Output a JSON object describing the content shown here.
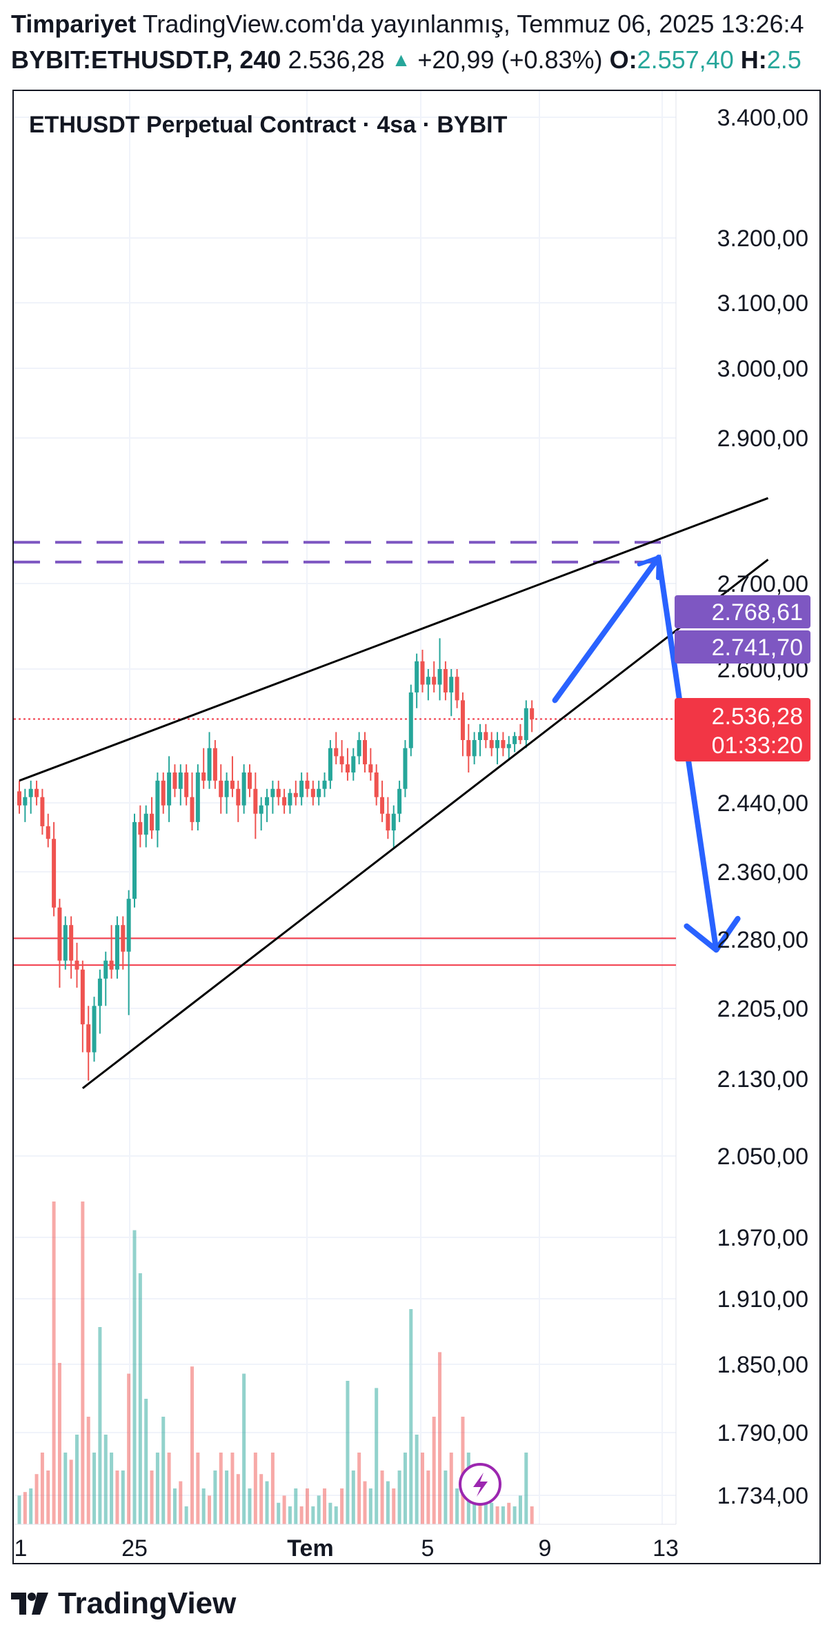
{
  "header": {
    "author": "Timpariyet",
    "published": "TradingView.com'da yayınlanmış, Temmuz 06, 2025 13:26:4",
    "symbol": "BYBIT:ETHUSDT.P, 240",
    "last": "2.536,28",
    "change": "+20,99 (+0.83%)",
    "open_label": "O:",
    "open_value": "2.557,40",
    "high_label": "H:",
    "high_value": "2.5"
  },
  "chart_title": "ETHUSDT Perpetual Contract · 4sa · BYBIT",
  "footer": {
    "brand": "TradingView"
  },
  "colors": {
    "up": "#26a69a",
    "down": "#ef5350",
    "purple": "#7e57c2",
    "blue": "#2962ff",
    "red_line": "#f23645",
    "trend": "#000000"
  },
  "chart_data": {
    "type": "candlestick",
    "y_axis_ticks": [
      "3.400,00",
      "3.200,00",
      "3.100,00",
      "3.000,00",
      "2.900,00",
      "2.700,00",
      "2.600,00",
      "2.440,00",
      "2.360,00",
      "2.280,00",
      "2.205,00",
      "2.130,00",
      "2.050,00",
      "1.970,00",
      "1.910,00",
      "1.850,00",
      "1.790,00",
      "1.734,00"
    ],
    "y_scale": "log",
    "x_axis_ticks": [
      "1",
      "25",
      "Tem",
      "5",
      "9",
      "13"
    ],
    "x_axis_bold": "Tem",
    "price_tags": [
      {
        "label": "2.768,61",
        "color": "#7e57c2"
      },
      {
        "label": "2.741,70",
        "color": "#7e57c2"
      }
    ],
    "last_price_tag": {
      "price": "2.536,28",
      "countdown": "01:33:20",
      "color": "#f23645"
    },
    "horizontal_levels": [
      {
        "price": 2768.61,
        "style": "dashed",
        "color": "#7e57c2"
      },
      {
        "price": 2741.7,
        "style": "dashed",
        "color": "#7e57c2"
      },
      {
        "price": 2536.28,
        "style": "dotted",
        "color": "#f23645"
      },
      {
        "price": 2275,
        "style": "solid",
        "color": "#f23645"
      },
      {
        "price": 2245,
        "style": "solid",
        "color": "#f23645"
      }
    ],
    "trendlines": [
      {
        "name": "upper-wedge",
        "from": {
          "bar": 0,
          "price": 2460
        },
        "to": {
          "bar": 130,
          "price": 2830
        }
      },
      {
        "name": "lower-wedge",
        "from": {
          "bar": 11,
          "price": 2112
        },
        "to": {
          "bar": 130,
          "price": 2745
        }
      }
    ],
    "projection": [
      {
        "bar": 93,
        "price": 2560
      },
      {
        "bar": 111,
        "price": 2748
      },
      {
        "bar": 121,
        "price": 2262
      }
    ],
    "candles": [
      [
        2447,
        2460,
        2420,
        2430
      ],
      [
        2430,
        2450,
        2410,
        2440
      ],
      [
        2440,
        2460,
        2420,
        2450
      ],
      [
        2450,
        2460,
        2430,
        2440
      ],
      [
        2440,
        2450,
        2395,
        2405
      ],
      [
        2405,
        2420,
        2380,
        2390
      ],
      [
        2390,
        2410,
        2300,
        2310
      ],
      [
        2310,
        2320,
        2220,
        2250
      ],
      [
        2250,
        2300,
        2240,
        2290
      ],
      [
        2290,
        2300,
        2230,
        2250
      ],
      [
        2250,
        2270,
        2220,
        2240
      ],
      [
        2240,
        2250,
        2150,
        2180
      ],
      [
        2180,
        2200,
        2120,
        2150
      ],
      [
        2150,
        2210,
        2140,
        2200
      ],
      [
        2200,
        2240,
        2170,
        2230
      ],
      [
        2230,
        2260,
        2200,
        2250
      ],
      [
        2250,
        2290,
        2230,
        2240
      ],
      [
        2240,
        2300,
        2230,
        2290
      ],
      [
        2290,
        2300,
        2240,
        2260
      ],
      [
        2260,
        2330,
        2190,
        2320
      ],
      [
        2320,
        2420,
        2310,
        2410
      ],
      [
        2410,
        2430,
        2380,
        2395
      ],
      [
        2395,
        2430,
        2380,
        2420
      ],
      [
        2420,
        2440,
        2390,
        2400
      ],
      [
        2400,
        2470,
        2380,
        2460
      ],
      [
        2460,
        2470,
        2420,
        2430
      ],
      [
        2430,
        2490,
        2410,
        2470
      ],
      [
        2470,
        2480,
        2440,
        2450
      ],
      [
        2450,
        2480,
        2430,
        2470
      ],
      [
        2470,
        2480,
        2430,
        2440
      ],
      [
        2440,
        2470,
        2400,
        2410
      ],
      [
        2410,
        2480,
        2400,
        2470
      ],
      [
        2470,
        2500,
        2450,
        2460
      ],
      [
        2460,
        2520,
        2450,
        2500
      ],
      [
        2500,
        2510,
        2450,
        2460
      ],
      [
        2460,
        2480,
        2420,
        2440
      ],
      [
        2440,
        2470,
        2420,
        2460
      ],
      [
        2460,
        2490,
        2440,
        2450
      ],
      [
        2450,
        2460,
        2410,
        2430
      ],
      [
        2430,
        2480,
        2420,
        2470
      ],
      [
        2470,
        2480,
        2440,
        2450
      ],
      [
        2450,
        2470,
        2390,
        2420
      ],
      [
        2420,
        2440,
        2400,
        2430
      ],
      [
        2430,
        2450,
        2410,
        2440
      ],
      [
        2440,
        2460,
        2420,
        2450
      ],
      [
        2450,
        2460,
        2430,
        2440
      ],
      [
        2440,
        2450,
        2420,
        2430
      ],
      [
        2430,
        2450,
        2420,
        2445
      ],
      [
        2445,
        2460,
        2430,
        2440
      ],
      [
        2440,
        2470,
        2430,
        2460
      ],
      [
        2460,
        2470,
        2440,
        2450
      ],
      [
        2450,
        2460,
        2430,
        2440
      ],
      [
        2440,
        2460,
        2430,
        2450
      ],
      [
        2450,
        2470,
        2440,
        2460
      ],
      [
        2460,
        2510,
        2450,
        2500
      ],
      [
        2500,
        2520,
        2480,
        2490
      ],
      [
        2490,
        2510,
        2470,
        2480
      ],
      [
        2480,
        2500,
        2460,
        2470
      ],
      [
        2470,
        2500,
        2460,
        2490
      ],
      [
        2490,
        2520,
        2480,
        2510
      ],
      [
        2510,
        2520,
        2470,
        2480
      ],
      [
        2480,
        2500,
        2460,
        2470
      ],
      [
        2470,
        2480,
        2430,
        2440
      ],
      [
        2440,
        2460,
        2410,
        2420
      ],
      [
        2420,
        2440,
        2390,
        2400
      ],
      [
        2400,
        2430,
        2380,
        2420
      ],
      [
        2420,
        2460,
        2410,
        2450
      ],
      [
        2450,
        2510,
        2440,
        2500
      ],
      [
        2500,
        2580,
        2490,
        2570
      ],
      [
        2570,
        2620,
        2550,
        2610
      ],
      [
        2610,
        2625,
        2570,
        2580
      ],
      [
        2580,
        2600,
        2560,
        2590
      ],
      [
        2590,
        2610,
        2570,
        2580
      ],
      [
        2580,
        2640,
        2560,
        2600
      ],
      [
        2600,
        2610,
        2560,
        2570
      ],
      [
        2570,
        2600,
        2540,
        2590
      ],
      [
        2590,
        2600,
        2550,
        2560
      ],
      [
        2560,
        2570,
        2490,
        2510
      ],
      [
        2510,
        2530,
        2470,
        2490
      ],
      [
        2490,
        2520,
        2480,
        2510
      ],
      [
        2510,
        2530,
        2490,
        2520
      ],
      [
        2520,
        2530,
        2500,
        2510
      ],
      [
        2510,
        2520,
        2490,
        2500
      ],
      [
        2500,
        2520,
        2480,
        2510
      ],
      [
        2510,
        2520,
        2490,
        2500
      ],
      [
        2500,
        2515,
        2485,
        2505
      ],
      [
        2505,
        2520,
        2495,
        2515
      ],
      [
        2515,
        2530,
        2505,
        2510
      ],
      [
        2510,
        2560,
        2500,
        2550
      ],
      [
        2550,
        2560,
        2520,
        2536
      ]
    ],
    "volume_scale_note": "volume bars bottom pane, relative heights 0..1",
    "volumes": [
      [
        0.08,
        "up"
      ],
      [
        0.09,
        "down"
      ],
      [
        0.1,
        "up"
      ],
      [
        0.14,
        "down"
      ],
      [
        0.2,
        "down"
      ],
      [
        0.15,
        "down"
      ],
      [
        0.9,
        "down"
      ],
      [
        0.45,
        "down"
      ],
      [
        0.2,
        "up"
      ],
      [
        0.18,
        "down"
      ],
      [
        0.25,
        "up"
      ],
      [
        0.9,
        "down"
      ],
      [
        0.3,
        "down"
      ],
      [
        0.2,
        "up"
      ],
      [
        0.55,
        "up"
      ],
      [
        0.25,
        "up"
      ],
      [
        0.2,
        "up"
      ],
      [
        0.15,
        "down"
      ],
      [
        0.15,
        "up"
      ],
      [
        0.42,
        "down"
      ],
      [
        0.82,
        "up"
      ],
      [
        0.7,
        "up"
      ],
      [
        0.35,
        "up"
      ],
      [
        0.15,
        "down"
      ],
      [
        0.2,
        "up"
      ],
      [
        0.3,
        "up"
      ],
      [
        0.2,
        "down"
      ],
      [
        0.1,
        "up"
      ],
      [
        0.12,
        "down"
      ],
      [
        0.05,
        "up"
      ],
      [
        0.44,
        "down"
      ],
      [
        0.2,
        "down"
      ],
      [
        0.1,
        "up"
      ],
      [
        0.08,
        "down"
      ],
      [
        0.15,
        "up"
      ],
      [
        0.2,
        "down"
      ],
      [
        0.15,
        "up"
      ],
      [
        0.2,
        "down"
      ],
      [
        0.14,
        "down"
      ],
      [
        0.42,
        "up"
      ],
      [
        0.1,
        "up"
      ],
      [
        0.2,
        "down"
      ],
      [
        0.14,
        "down"
      ],
      [
        0.12,
        "up"
      ],
      [
        0.2,
        "down"
      ],
      [
        0.06,
        "up"
      ],
      [
        0.08,
        "down"
      ],
      [
        0.05,
        "up"
      ],
      [
        0.1,
        "up"
      ],
      [
        0.05,
        "down"
      ],
      [
        0.1,
        "down"
      ],
      [
        0.05,
        "up"
      ],
      [
        0.08,
        "up"
      ],
      [
        0.1,
        "down"
      ],
      [
        0.06,
        "up"
      ],
      [
        0.05,
        "up"
      ],
      [
        0.1,
        "down"
      ],
      [
        0.4,
        "up"
      ],
      [
        0.15,
        "up"
      ],
      [
        0.2,
        "down"
      ],
      [
        0.12,
        "down"
      ],
      [
        0.1,
        "up"
      ],
      [
        0.38,
        "up"
      ],
      [
        0.15,
        "down"
      ],
      [
        0.12,
        "up"
      ],
      [
        0.1,
        "down"
      ],
      [
        0.15,
        "up"
      ],
      [
        0.2,
        "up"
      ],
      [
        0.6,
        "up"
      ],
      [
        0.25,
        "up"
      ],
      [
        0.2,
        "down"
      ],
      [
        0.15,
        "down"
      ],
      [
        0.3,
        "down"
      ],
      [
        0.48,
        "down"
      ],
      [
        0.15,
        "up"
      ],
      [
        0.2,
        "down"
      ],
      [
        0.1,
        "up"
      ],
      [
        0.3,
        "down"
      ],
      [
        0.2,
        "up"
      ],
      [
        0.15,
        "up"
      ],
      [
        0.1,
        "down"
      ],
      [
        0.08,
        "up"
      ],
      [
        0.06,
        "up"
      ],
      [
        0.05,
        "down"
      ],
      [
        0.05,
        "up"
      ],
      [
        0.06,
        "down"
      ],
      [
        0.05,
        "up"
      ],
      [
        0.08,
        "up"
      ],
      [
        0.2,
        "up"
      ],
      [
        0.05,
        "down"
      ]
    ]
  }
}
